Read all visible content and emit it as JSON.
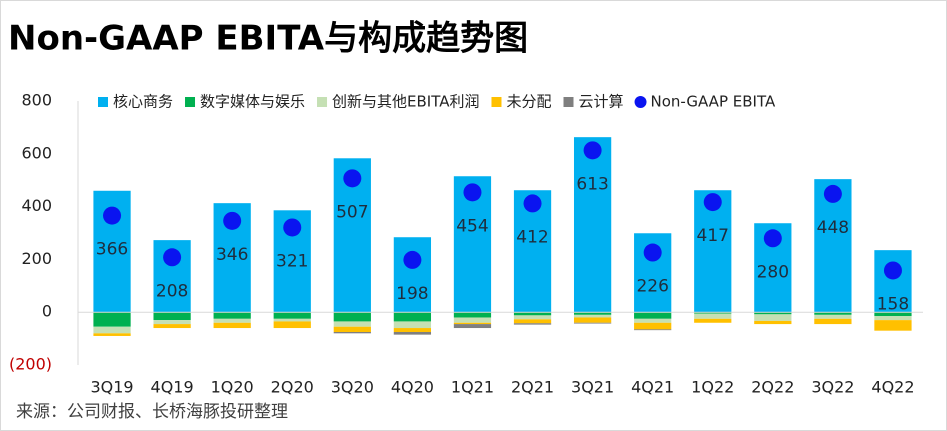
{
  "chart_data": {
    "type": "bar",
    "stacked": true,
    "title": "Non-GAAP EBITA与构成趋势图",
    "source": "来源：公司财报、长桥海豚投研整理",
    "categories": [
      "3Q19",
      "4Q19",
      "1Q20",
      "2Q20",
      "3Q20",
      "4Q20",
      "1Q21",
      "2Q21",
      "3Q21",
      "4Q21",
      "1Q22",
      "2Q22",
      "3Q22",
      "4Q22"
    ],
    "ylim": [
      -200,
      800
    ],
    "yticks": [
      {
        "value": -200,
        "label": "(200)"
      },
      0,
      200,
      400,
      600,
      800
    ],
    "series": [
      {
        "name": "核心商务",
        "color": "#00b0f0",
        "values": [
          460,
          273,
          413,
          386,
          583,
          284,
          515,
          462,
          663,
          299,
          462,
          337,
          504,
          235
        ]
      },
      {
        "name": "数字媒体与娱乐",
        "color": "#00b050",
        "values": [
          -55,
          -30,
          -25,
          -25,
          -35,
          -35,
          -20,
          -12,
          -10,
          -25,
          -5,
          -8,
          -10,
          -15
        ]
      },
      {
        "name": "创新与其他EBITA利润",
        "color": "#c5e0b4",
        "values": [
          -25,
          -15,
          -15,
          -10,
          -20,
          -25,
          -20,
          -15,
          -10,
          -15,
          -20,
          -25,
          -15,
          -15
        ]
      },
      {
        "name": "未分配",
        "color": "#ffc000",
        "values": [
          -10,
          -15,
          -20,
          -25,
          -20,
          -15,
          -5,
          -15,
          -20,
          -25,
          -15,
          -12,
          -20,
          -40
        ]
      },
      {
        "name": "云计算",
        "color": "#7f7f7f",
        "values": [
          0,
          0,
          0,
          0,
          -5,
          -10,
          -15,
          -5,
          -3,
          -3,
          0,
          0,
          0,
          0
        ]
      },
      {
        "name": "Non-GAAP EBITA",
        "color": "#0a14f0",
        "type": "scatter",
        "values": [
          366,
          208,
          346,
          321,
          507,
          198,
          454,
          412,
          613,
          226,
          417,
          280,
          448,
          158
        ]
      }
    ]
  }
}
